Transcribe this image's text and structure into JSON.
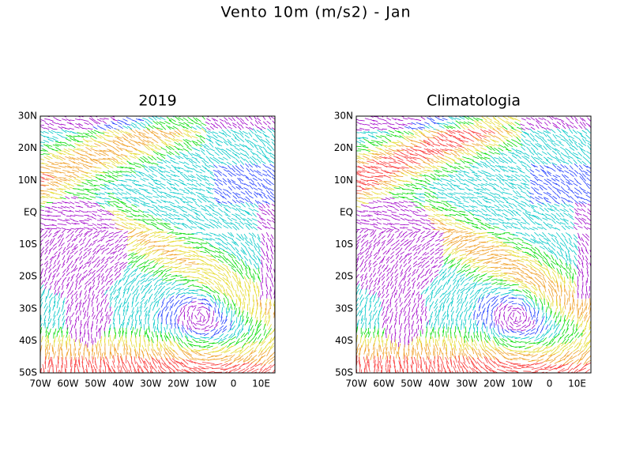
{
  "title": "Vento 10m (m/s2) - Jan",
  "panels": [
    {
      "title": "2019"
    },
    {
      "title": "Climatologia"
    }
  ],
  "axes": {
    "lat_labels": [
      "30N",
      "20N",
      "10N",
      "EQ",
      "10S",
      "20S",
      "30S",
      "40S",
      "50S"
    ],
    "lon_labels": [
      "70W",
      "60W",
      "50W",
      "40W",
      "30W",
      "20W",
      "10W",
      "0",
      "10E"
    ]
  }
}
